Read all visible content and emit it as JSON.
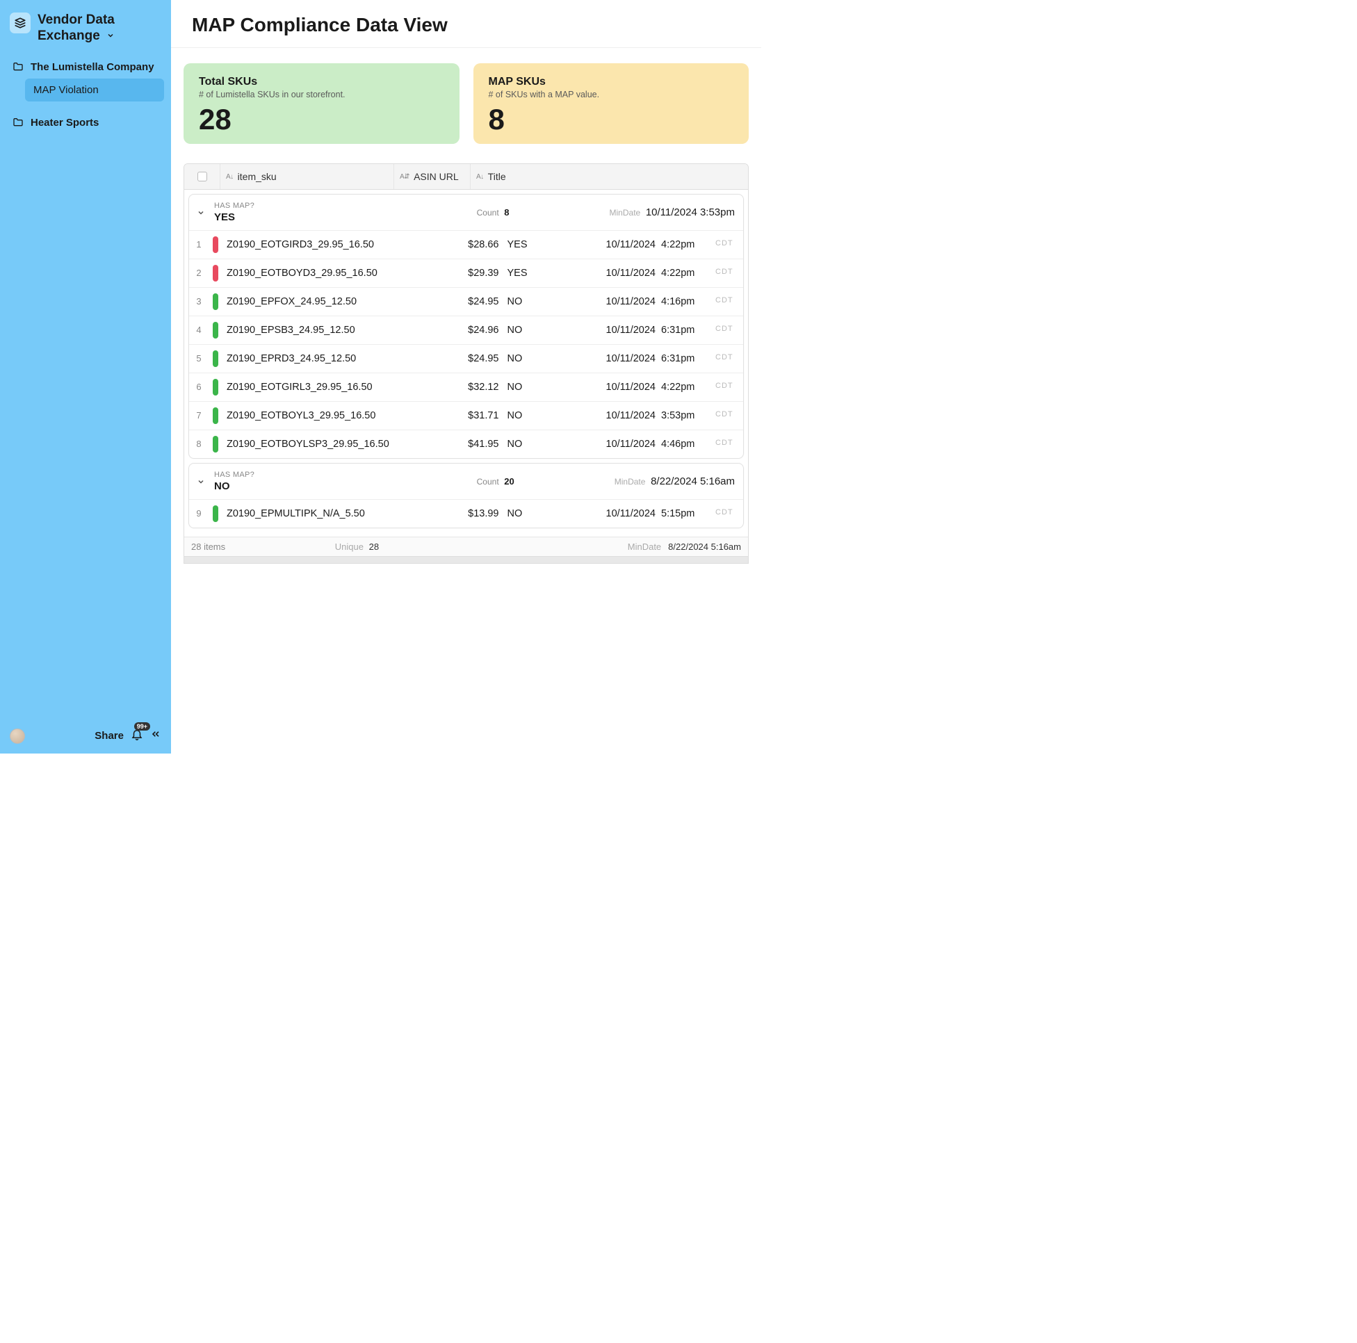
{
  "brand": {
    "title": "Vendor Data Exchange"
  },
  "nav": {
    "items": [
      {
        "label": "The Lumistella Company",
        "type": "folder"
      },
      {
        "label": "MAP Violation",
        "type": "page",
        "active": true
      },
      {
        "label": "Heater Sports",
        "type": "folder"
      }
    ]
  },
  "footer": {
    "share": "Share",
    "badge": "99+"
  },
  "header": {
    "title": "MAP Compliance Data View"
  },
  "cards": [
    {
      "title": "Total SKUs",
      "sub": "# of Lumistella SKUs in our storefront.",
      "value": "28",
      "bg": "#cbedc7"
    },
    {
      "title": "MAP SKUs",
      "sub": "# of SKUs with a MAP value.",
      "value": "8",
      "bg": "#fbe6ad"
    }
  ],
  "columns": {
    "sku": "item_sku",
    "asin": "ASIN URL",
    "title": "Title"
  },
  "groups": [
    {
      "question": "HAS MAP?",
      "answer": "YES",
      "count_label": "Count",
      "count": "8",
      "mindate_label": "MinDate",
      "mindate": "10/11/2024 3:53pm",
      "rows": [
        {
          "n": "1",
          "bar": "#e84a5f",
          "sku": "Z0190_EOTGIRD3_29.95_16.50",
          "price": "$28.66",
          "viol": "YES",
          "date": "10/11/2024",
          "time": "4:22pm",
          "tz": "CDT"
        },
        {
          "n": "2",
          "bar": "#e84a5f",
          "sku": "Z0190_EOTBOYD3_29.95_16.50",
          "price": "$29.39",
          "viol": "YES",
          "date": "10/11/2024",
          "time": "4:22pm",
          "tz": "CDT"
        },
        {
          "n": "3",
          "bar": "#3bb54a",
          "sku": "Z0190_EPFOX_24.95_12.50",
          "price": "$24.95",
          "viol": "NO",
          "date": "10/11/2024",
          "time": "4:16pm",
          "tz": "CDT"
        },
        {
          "n": "4",
          "bar": "#3bb54a",
          "sku": "Z0190_EPSB3_24.95_12.50",
          "price": "$24.96",
          "viol": "NO",
          "date": "10/11/2024",
          "time": "6:31pm",
          "tz": "CDT"
        },
        {
          "n": "5",
          "bar": "#3bb54a",
          "sku": "Z0190_EPRD3_24.95_12.50",
          "price": "$24.95",
          "viol": "NO",
          "date": "10/11/2024",
          "time": "6:31pm",
          "tz": "CDT"
        },
        {
          "n": "6",
          "bar": "#3bb54a",
          "sku": "Z0190_EOTGIRL3_29.95_16.50",
          "price": "$32.12",
          "viol": "NO",
          "date": "10/11/2024",
          "time": "4:22pm",
          "tz": "CDT"
        },
        {
          "n": "7",
          "bar": "#3bb54a",
          "sku": "Z0190_EOTBOYL3_29.95_16.50",
          "price": "$31.71",
          "viol": "NO",
          "date": "10/11/2024",
          "time": "3:53pm",
          "tz": "CDT"
        },
        {
          "n": "8",
          "bar": "#3bb54a",
          "sku": "Z0190_EOTBOYLSP3_29.95_16.50",
          "price": "$41.95",
          "viol": "NO",
          "date": "10/11/2024",
          "time": "4:46pm",
          "tz": "CDT"
        }
      ]
    },
    {
      "question": "HAS MAP?",
      "answer": "NO",
      "count_label": "Count",
      "count": "20",
      "mindate_label": "MinDate",
      "mindate": "8/22/2024 5:16am",
      "rows": [
        {
          "n": "9",
          "bar": "#3bb54a",
          "sku": "Z0190_EPMULTIPK_N/A_5.50",
          "price": "$13.99",
          "viol": "NO",
          "date": "10/11/2024",
          "time": "5:15pm",
          "tz": "CDT"
        }
      ]
    }
  ],
  "footer_stats": {
    "items_label": "28 items",
    "unique_label": "Unique",
    "unique_value": "28",
    "mindate_label": "MinDate",
    "mindate_value": "8/22/2024 5:16am"
  }
}
